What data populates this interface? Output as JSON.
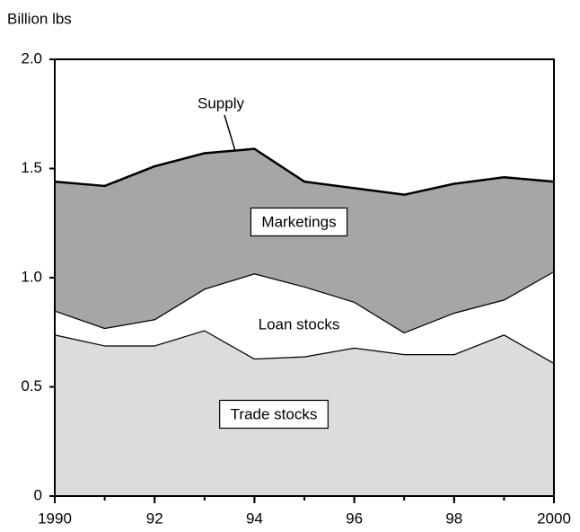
{
  "chart_data": {
    "type": "stacked_area",
    "y_axis_label": "Billion lbs",
    "annotations": [
      "Supply"
    ],
    "x": [
      1990,
      1991,
      1992,
      1993,
      1994,
      1995,
      1996,
      1997,
      1998,
      1999,
      2000
    ],
    "series": [
      {
        "name": "Trade stocks",
        "color": "#dcdcdc",
        "values": [
          0.74,
          0.69,
          0.69,
          0.76,
          0.63,
          0.64,
          0.68,
          0.65,
          0.65,
          0.74,
          0.61
        ]
      },
      {
        "name": "Loan stocks",
        "color": "#ffffff",
        "values": [
          0.11,
          0.08,
          0.12,
          0.19,
          0.39,
          0.32,
          0.21,
          0.1,
          0.19,
          0.16,
          0.42
        ]
      },
      {
        "name": "Marketings",
        "color": "#a6a6a6",
        "values": [
          0.59,
          0.65,
          0.7,
          0.62,
          0.57,
          0.48,
          0.52,
          0.63,
          0.59,
          0.56,
          0.41
        ]
      }
    ],
    "xlim": [
      1990,
      2000
    ],
    "xticks": [
      1990,
      {
        "value": 1992,
        "label": "92"
      },
      {
        "value": 1994,
        "label": "94"
      },
      {
        "value": 1996,
        "label": "96"
      },
      {
        "value": 1998,
        "label": "98"
      },
      2000
    ],
    "ylim": [
      0,
      2
    ],
    "yticks": [
      0,
      0.5,
      {
        "value": 1,
        "label": "1.0"
      },
      1.5,
      {
        "value": 2,
        "label": "2.0"
      }
    ],
    "grid": false
  }
}
